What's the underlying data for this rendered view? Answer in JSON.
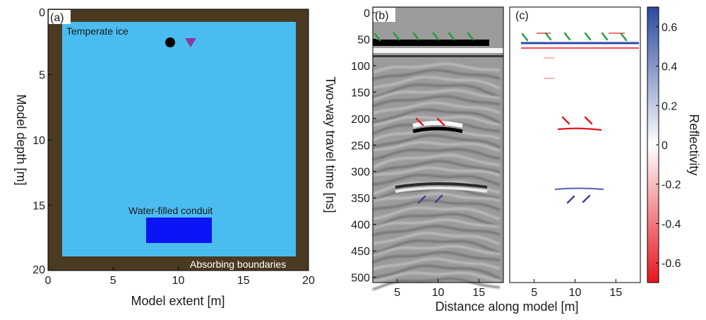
{
  "panel_a": {
    "label": "(a)",
    "region_labels": {
      "ice": "Temperate ice",
      "conduit": "Water-filled conduit",
      "boundaries": "Absorbing boundaries"
    },
    "xlabel": "Model extent [m]",
    "ylabel": "Model depth [m]",
    "xticks": [
      "0",
      "5",
      "10",
      "15",
      "20"
    ],
    "yticks": [
      "0",
      "5",
      "10",
      "15",
      "20"
    ],
    "colors": {
      "boundary": "#4a3a22",
      "ice": "#4bbcf0",
      "conduit": "#0a14f5",
      "source": "#000000",
      "receiver": "#8a3aa0"
    }
  },
  "panel_b": {
    "label": "(b)",
    "ylabel": "Two-way travel time [ns]",
    "yticks": [
      "0",
      "50",
      "100",
      "150",
      "200",
      "250",
      "300",
      "350",
      "400",
      "450",
      "500"
    ],
    "xticks": [
      "5",
      "10",
      "15"
    ]
  },
  "panel_c": {
    "label": "(c)",
    "xticks": [
      "5",
      "10",
      "15"
    ]
  },
  "shared_xlabel": "Distance along model [m]",
  "colorbar": {
    "label": "Reflectivity",
    "ticks": [
      "0.6",
      "0.4",
      "0.2",
      "0",
      "-0.2",
      "-0.4",
      "-0.6"
    ],
    "colors": {
      "positive": "#2b4aa0",
      "zero": "#ffffff",
      "negative": "#e8141e"
    }
  },
  "arrow_colors": {
    "surface": "#1f9e3a",
    "conduit_top": "#e8141e",
    "conduit_bottom": "#3a3f9e"
  }
}
